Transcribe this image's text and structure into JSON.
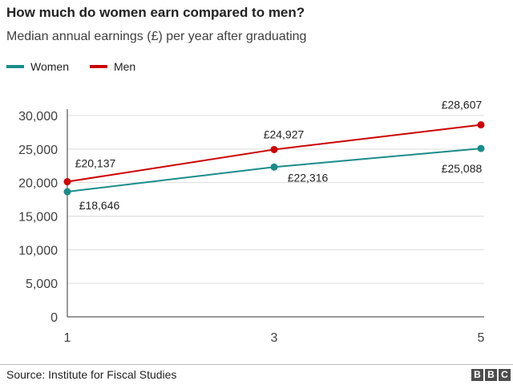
{
  "chart_data": {
    "type": "line",
    "title": "How much do women earn compared to men?",
    "subtitle": "Median annual earnings (£) per year after graduating",
    "x": [
      1,
      3,
      5
    ],
    "x_ticks": [
      "1",
      "3",
      "5"
    ],
    "y_ticks": [
      "0",
      "5,000",
      "10,000",
      "15,000",
      "20,000",
      "25,000",
      "30,000"
    ],
    "ylim": [
      0,
      30000
    ],
    "grid": true,
    "legend": "top-left",
    "series": [
      {
        "name": "Women",
        "color": "#1a8c8a",
        "values": [
          18646,
          22316,
          25088
        ],
        "labels": [
          "£18,646",
          "£22,316",
          "£25,088"
        ]
      },
      {
        "name": "Men",
        "color": "#cc0000",
        "values": [
          20137,
          24927,
          28607
        ],
        "labels": [
          "£20,137",
          "£24,927",
          "£28,607"
        ]
      }
    ]
  },
  "footer": {
    "source": "Source: Institute for Fiscal Studies",
    "logo": "BBC"
  }
}
